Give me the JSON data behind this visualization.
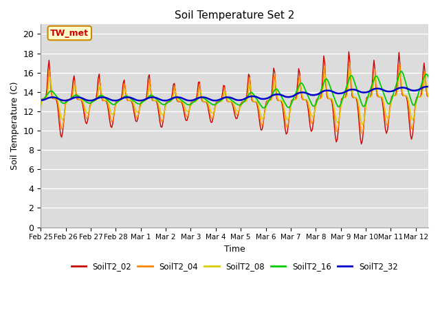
{
  "title": "Soil Temperature Set 2",
  "xlabel": "Time",
  "ylabel": "Soil Temperature (C)",
  "ylim": [
    0,
    21
  ],
  "yticks": [
    0,
    2,
    4,
    6,
    8,
    10,
    12,
    14,
    16,
    18,
    20
  ],
  "bg_color": "#dcdcdc",
  "fig_color": "#ffffff",
  "annotation_text": "TW_met",
  "annotation_color": "#cc0000",
  "annotation_bg": "#ffffcc",
  "annotation_border": "#cc8800",
  "series_colors": {
    "SoilT2_02": "#cc0000",
    "SoilT2_04": "#ff8800",
    "SoilT2_08": "#ddcc00",
    "SoilT2_16": "#00cc00",
    "SoilT2_32": "#0000cc"
  },
  "x_tick_labels": [
    "Feb 25",
    "Feb 26",
    "Feb 27",
    "Feb 28",
    "Mar 1",
    "Mar 2",
    "Mar 3",
    "Mar 4",
    "Mar 5",
    "Mar 6",
    "Mar 7",
    "Mar 8",
    "Mar 9",
    "Mar 10",
    "Mar 11",
    "Mar 12"
  ],
  "day_amplitudes_02": [
    4.0,
    2.5,
    2.8,
    2.2,
    2.8,
    2.0,
    2.2,
    1.8,
    3.0,
    3.5,
    3.3,
    4.5,
    4.8,
    3.8,
    4.5,
    3.5
  ],
  "day_amplitudes_04": [
    3.2,
    2.0,
    2.2,
    1.8,
    2.2,
    1.6,
    1.8,
    1.4,
    2.5,
    2.8,
    2.5,
    3.5,
    3.8,
    3.0,
    3.5,
    2.8
  ],
  "day_amplitudes_08": [
    2.2,
    1.4,
    1.5,
    1.2,
    1.5,
    1.1,
    1.2,
    1.0,
    1.8,
    2.0,
    1.8,
    2.5,
    2.8,
    2.2,
    2.5,
    2.0
  ],
  "day_amplitudes_16": [
    0.8,
    0.5,
    0.6,
    0.5,
    0.6,
    0.5,
    0.5,
    0.5,
    1.0,
    1.2,
    1.5,
    1.8,
    2.0,
    1.8,
    2.2,
    1.8
  ],
  "base_02": [
    13.3,
    13.2,
    13.1,
    13.1,
    13.1,
    13.0,
    13.0,
    13.0,
    13.0,
    13.1,
    13.2,
    13.3,
    13.4,
    13.5,
    13.6,
    13.5
  ],
  "base_04": [
    13.3,
    13.2,
    13.1,
    13.1,
    13.1,
    13.0,
    13.0,
    13.0,
    13.0,
    13.1,
    13.2,
    13.3,
    13.4,
    13.5,
    13.6,
    13.5
  ],
  "base_08": [
    13.3,
    13.2,
    13.15,
    13.1,
    13.1,
    13.05,
    13.0,
    13.0,
    13.0,
    13.1,
    13.2,
    13.3,
    13.4,
    13.5,
    13.6,
    13.5
  ],
  "base_16": [
    13.5,
    13.3,
    13.2,
    13.2,
    13.2,
    13.1,
    13.1,
    13.1,
    13.2,
    13.4,
    13.8,
    14.0,
    14.2,
    14.3,
    14.5,
    14.5
  ],
  "base_32": [
    13.3,
    13.3,
    13.3,
    13.3,
    13.3,
    13.3,
    13.3,
    13.3,
    13.4,
    13.6,
    13.8,
    14.0,
    14.1,
    14.2,
    14.3,
    14.4
  ]
}
